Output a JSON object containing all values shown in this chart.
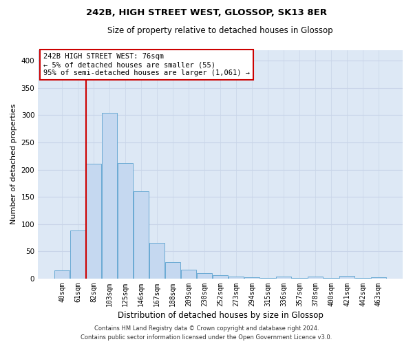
{
  "title": "242B, HIGH STREET WEST, GLOSSOP, SK13 8ER",
  "subtitle": "Size of property relative to detached houses in Glossop",
  "xlabel": "Distribution of detached houses by size in Glossop",
  "ylabel": "Number of detached properties",
  "bar_color": "#c5d8f0",
  "bar_edge_color": "#6aaad4",
  "background_color": "#dde8f5",
  "categories": [
    "40sqm",
    "61sqm",
    "82sqm",
    "103sqm",
    "125sqm",
    "146sqm",
    "167sqm",
    "188sqm",
    "209sqm",
    "230sqm",
    "252sqm",
    "273sqm",
    "294sqm",
    "315sqm",
    "336sqm",
    "357sqm",
    "378sqm",
    "400sqm",
    "421sqm",
    "442sqm",
    "463sqm"
  ],
  "values": [
    15,
    88,
    211,
    304,
    212,
    161,
    65,
    30,
    16,
    10,
    6,
    4,
    2,
    1,
    4,
    1,
    4,
    1,
    5,
    1,
    3
  ],
  "vline_bar_index": 1,
  "annotation_title": "242B HIGH STREET WEST: 76sqm",
  "annotation_line1": "← 5% of detached houses are smaller (55)",
  "annotation_line2": "95% of semi-detached houses are larger (1,061) →",
  "vline_color": "#cc0000",
  "annotation_box_color": "#cc0000",
  "footer_line1": "Contains HM Land Registry data © Crown copyright and database right 2024.",
  "footer_line2": "Contains public sector information licensed under the Open Government Licence v3.0.",
  "ylim": [
    0,
    420
  ],
  "yticks": [
    0,
    50,
    100,
    150,
    200,
    250,
    300,
    350,
    400
  ],
  "grid_color": "#c8d4e8",
  "title_fontsize": 9.5,
  "subtitle_fontsize": 8.5,
  "ylabel_fontsize": 8,
  "xlabel_fontsize": 8.5,
  "tick_fontsize": 7,
  "footer_fontsize": 6,
  "annotation_fontsize": 7.5
}
